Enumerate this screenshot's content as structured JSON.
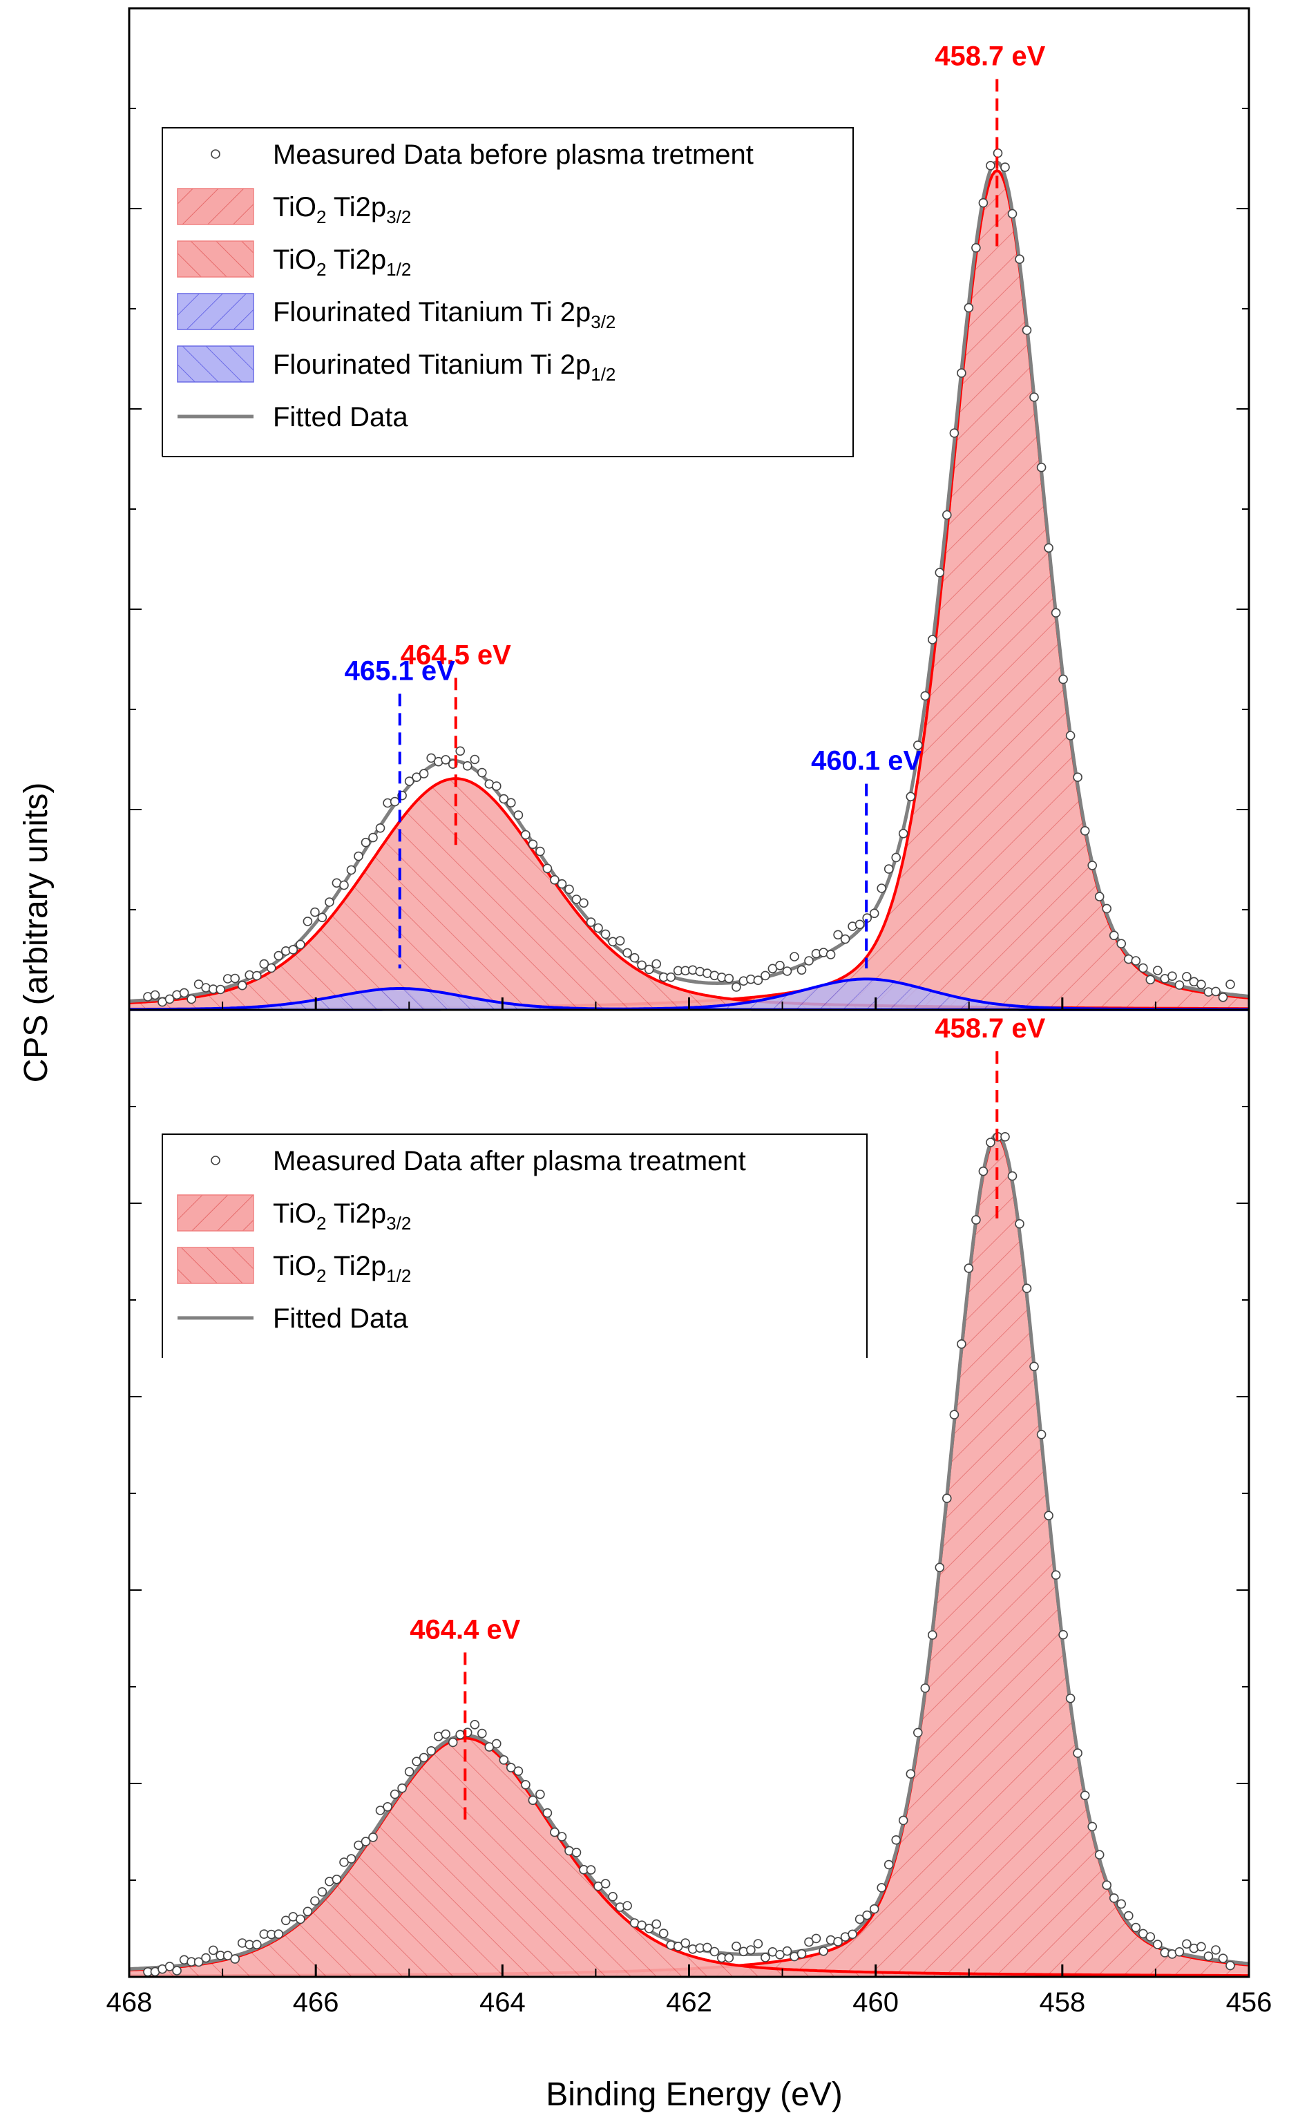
{
  "chart_data": [
    {
      "type": "area",
      "panel": "top",
      "xlabel": "Binding Energy (eV)",
      "ylabel": "CPS (arbitrary units)",
      "xlim": [
        468,
        456
      ],
      "x_reversed": true,
      "ylim": [
        0,
        1.0
      ],
      "grid": false,
      "legend_position": "top-left",
      "legend": [
        {
          "key": "measured",
          "label": "Measured Data before plasma tretment"
        },
        {
          "key": "tio2_32",
          "prefix": "TiO",
          "sub1": "2",
          "mid": "  Ti2p",
          "sub2": "3/2"
        },
        {
          "key": "tio2_12",
          "prefix": "TiO",
          "sub1": "2",
          "mid": "  Ti2p",
          "sub2": "1/2"
        },
        {
          "key": "ft_32",
          "prefix": "Flourinated Titanium  Ti 2p",
          "sub1": "",
          "mid": "",
          "sub2": "3/2"
        },
        {
          "key": "ft_12",
          "prefix": "Flourinated Titanium  Ti 2p",
          "sub1": "",
          "mid": "",
          "sub2": "1/2"
        },
        {
          "key": "fit",
          "label": "Fitted Data"
        }
      ],
      "series": [
        {
          "name": "TiO2 Ti2p3/2",
          "center": 458.7,
          "height": 0.98,
          "fwhm": 1.2,
          "color": "#ff0000"
        },
        {
          "name": "TiO2 Ti2p1/2",
          "center": 464.5,
          "height": 0.27,
          "fwhm": 2.3,
          "color": "#ff0000"
        },
        {
          "name": "Flourinated Titanium Ti 2p3/2",
          "center": 460.1,
          "height": 0.036,
          "fwhm": 1.7,
          "color": "#0000ff"
        },
        {
          "name": "Flourinated Titanium Ti 2p1/2",
          "center": 465.1,
          "height": 0.025,
          "fwhm": 1.7,
          "color": "#0000ff"
        }
      ],
      "annotations": [
        {
          "text": "458.7 eV",
          "x": 458.7,
          "color": "#ff0000"
        },
        {
          "text": "464.5 eV",
          "x": 464.5,
          "color": "#ff0000"
        },
        {
          "text": "460.1 eV",
          "x": 460.1,
          "color": "#0000ff"
        },
        {
          "text": "465.1 eV",
          "x": 465.1,
          "color": "#0000ff"
        }
      ]
    },
    {
      "type": "area",
      "panel": "bottom",
      "xlabel": "Binding Energy (eV)",
      "ylabel": "CPS (arbitrary units)",
      "xlim": [
        468,
        456
      ],
      "x_reversed": true,
      "ylim": [
        0,
        1.0
      ],
      "grid": false,
      "legend_position": "top-left",
      "legend": [
        {
          "key": "measured",
          "label": "Measured Data after plasma treatment"
        },
        {
          "key": "tio2_32",
          "prefix": "TiO",
          "sub1": "2",
          "mid": "  Ti2p",
          "sub2": "3/2"
        },
        {
          "key": "tio2_12",
          "prefix": "TiO",
          "sub1": "2",
          "mid": "  Ti2p",
          "sub2": "1/2"
        },
        {
          "key": "fit",
          "label": "Fitted Data"
        }
      ],
      "series": [
        {
          "name": "TiO2 Ti2p3/2",
          "center": 458.7,
          "height": 0.95,
          "fwhm": 1.2,
          "color": "#ff0000"
        },
        {
          "name": "TiO2 Ti2p1/2",
          "center": 464.4,
          "height": 0.27,
          "fwhm": 2.3,
          "color": "#ff0000"
        }
      ],
      "annotations": [
        {
          "text": "458.7 eV",
          "x": 458.7,
          "color": "#ff0000"
        },
        {
          "text": "464.4 eV",
          "x": 464.4,
          "color": "#ff0000"
        }
      ]
    }
  ],
  "axis": {
    "xlabel": "Binding Energy (eV)",
    "ylabel": "CPS (arbitrary units)",
    "xticks": [
      "468",
      "466",
      "464",
      "462",
      "460",
      "458",
      "456"
    ]
  },
  "colors": {
    "red_fill": "#f7a8a8",
    "blue_fill": "#aaaaf0",
    "red_line": "#ff0000",
    "blue_line": "#0000ff",
    "fit_line": "#808080",
    "axis": "#000000"
  }
}
